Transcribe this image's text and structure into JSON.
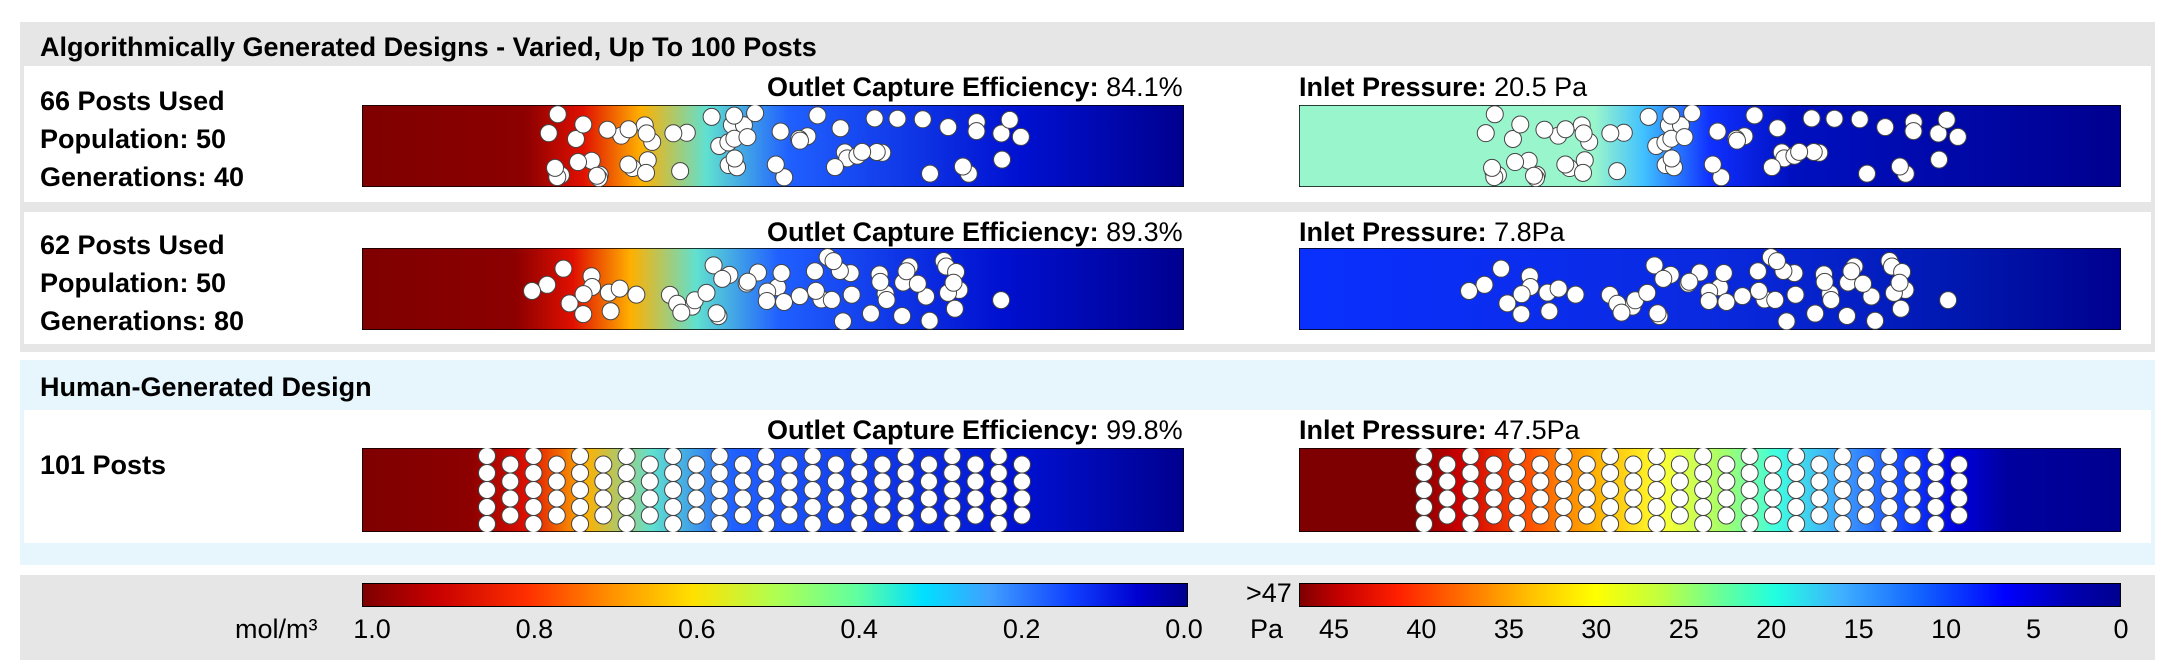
{
  "algorithmic": {
    "title": "Algorithmically Generated Designs - Varied, Up To 100 Posts",
    "designs": [
      {
        "lines": [
          "66 Posts Used",
          "Population: 50",
          "Generations: 40"
        ],
        "efficiency_label": "Outlet Capture Efficiency:",
        "efficiency_value": "84.1%",
        "pressure_label": "Inlet Pressure:",
        "pressure_value": "20.5 Pa"
      },
      {
        "lines": [
          "62 Posts Used",
          "Population: 50",
          "Generations: 80"
        ],
        "efficiency_label": "Outlet Capture Efficiency:",
        "efficiency_value": "89.3%",
        "pressure_label": "Inlet Pressure:",
        "pressure_value": "7.8Pa"
      }
    ]
  },
  "human": {
    "title": "Human-Generated Design",
    "design": {
      "lines": [
        "101 Posts"
      ],
      "efficiency_label": "Outlet Capture Efficiency:",
      "efficiency_value": "99.8%",
      "pressure_label": "Inlet Pressure:",
      "pressure_value": "47.5Pa"
    }
  },
  "colorbars": {
    "concentration": {
      "unit": "mol/m³",
      "ticks": [
        "1.0",
        "0.8",
        "0.6",
        "0.4",
        "0.2",
        "0.0"
      ],
      "tick_values": [
        1.0,
        0.8,
        0.6,
        0.4,
        0.2,
        0.0
      ],
      "range": [
        1.0,
        0.0
      ]
    },
    "pressure": {
      "unit": "Pa",
      "overflow_label": ">47",
      "ticks": [
        "45",
        "40",
        "35",
        "30",
        "25",
        "20",
        "15",
        "10",
        "5",
        "0"
      ],
      "tick_values": [
        45,
        40,
        35,
        30,
        25,
        20,
        15,
        10,
        5,
        0
      ],
      "range": [
        47,
        0
      ]
    }
  },
  "colors": {
    "panel_grey": "#e6e6e6",
    "panel_blue": "#e6f6fc",
    "field_dark_red": "#7f0000",
    "field_dark_blue": "#00008f",
    "field_blue": "#0a2fe6",
    "field_mint": "#99f5cc"
  }
}
